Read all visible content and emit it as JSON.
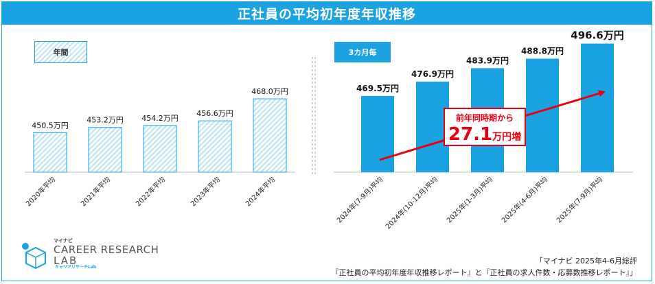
{
  "title": "正社員の平均初年度年収推移",
  "legend": {
    "annual": "年間",
    "quarterly": "3カ月毎"
  },
  "chart_data": [
    {
      "type": "bar",
      "name": "annual",
      "categories": [
        "2020年平均",
        "2021年平均",
        "2022年平均",
        "2023年平均",
        "2024年平均"
      ],
      "values": [
        450.5,
        453.2,
        454.2,
        456.6,
        468.0
      ],
      "labels": [
        "450.5万円",
        "453.2万円",
        "454.2万円",
        "456.6万円",
        "468.0万円"
      ],
      "unit": "万円",
      "ylim": [
        430,
        500
      ]
    },
    {
      "type": "bar",
      "name": "quarterly",
      "categories": [
        "2024年(7-9月)平均",
        "2024年(10-12月)平均",
        "2025年(1-3月)平均",
        "2025年(4-6月)平均",
        "2025年(7-9月)平均"
      ],
      "values": [
        469.5,
        476.9,
        483.9,
        488.8,
        496.6
      ],
      "labels": [
        "469.5万円",
        "476.9万円",
        "483.9万円",
        "488.8万円",
        "496.6万円"
      ],
      "unit": "万円",
      "ylim": [
        430,
        500
      ]
    }
  ],
  "callout": {
    "line1": "前年同時期から",
    "number": "27.1",
    "unit": "万円増"
  },
  "logo": {
    "brand": "マイナビ",
    "line1": "CAREER RESEARCH",
    "line2": "LAB",
    "sub": "キャリアリサーチLab"
  },
  "source": {
    "line1": "「マイナビ 2025年4-6月総評",
    "line2": "『正社員の平均初年度年収推移レポート』と『正社員の求人件数・応募数推移レポート』」"
  },
  "colors": {
    "accent": "#1aa3e0",
    "arrow": "#e60012",
    "hatch_light": "#bfe4f6"
  }
}
